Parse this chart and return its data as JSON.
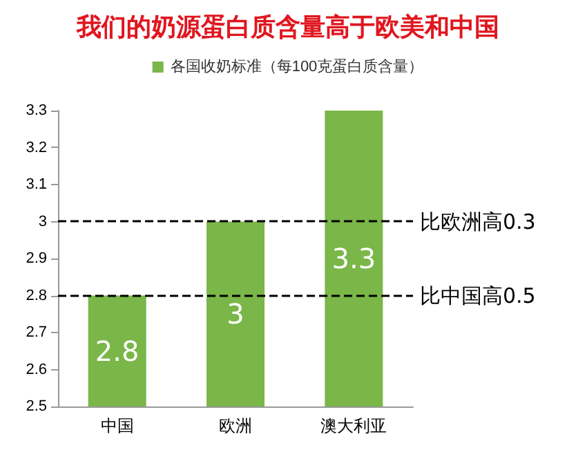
{
  "chart_data": {
    "type": "bar",
    "title": "我们的奶源蛋白质含量高于欧美和中国",
    "categories": [
      "中国",
      "欧洲",
      "澳大利亚"
    ],
    "series": [
      {
        "name": "各国收奶标准（每100克蛋白质含量）",
        "color": "#7ab648",
        "values": [
          2.8,
          3,
          3.3
        ]
      }
    ],
    "ylim": [
      2.5,
      3.3
    ],
    "yticks": [
      2.5,
      2.6,
      2.7,
      2.8,
      2.9,
      3,
      3.1,
      3.2,
      3.3
    ],
    "grid": false,
    "legend": "top",
    "data_labels": true,
    "ref_lines": [
      {
        "axis": "y",
        "value": 3,
        "label": "比欧洲高0.3",
        "color": "#000000",
        "line_style": "dashed"
      },
      {
        "axis": "y",
        "value": 2.8,
        "label": "比中国高0.5",
        "color": "#000000",
        "line_style": "dashed"
      }
    ]
  }
}
